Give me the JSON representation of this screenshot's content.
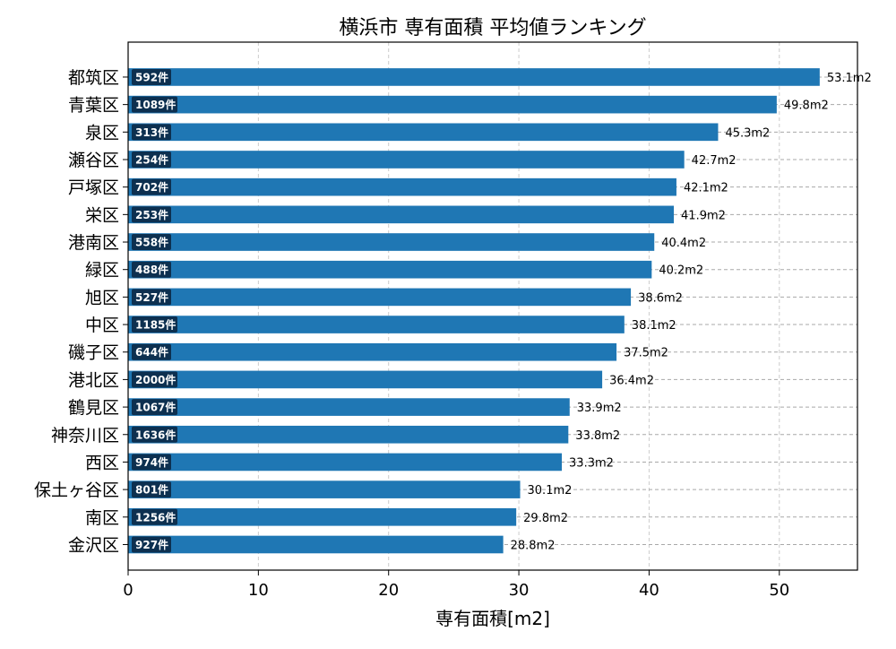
{
  "chart_data": {
    "type": "bar",
    "orientation": "horizontal",
    "title": "横浜市 専有面積 平均値ランキング",
    "xlabel": "専有面積[m2]",
    "ylabel": "",
    "xlim": [
      0,
      56
    ],
    "xticks": [
      0,
      10,
      20,
      30,
      40,
      50
    ],
    "grid": true,
    "bar_color": "#1f77b4",
    "count_badge_color": "#0d3050",
    "categories": [
      "都筑区",
      "青葉区",
      "泉区",
      "瀬谷区",
      "戸塚区",
      "栄区",
      "港南区",
      "緑区",
      "旭区",
      "中区",
      "磯子区",
      "港北区",
      "鶴見区",
      "神奈川区",
      "西区",
      "保土ヶ谷区",
      "南区",
      "金沢区"
    ],
    "values": [
      53.1,
      49.8,
      45.3,
      42.7,
      42.1,
      41.9,
      40.4,
      40.2,
      38.6,
      38.1,
      37.5,
      36.4,
      33.9,
      33.8,
      33.3,
      30.1,
      29.8,
      28.8
    ],
    "value_labels": [
      "53.1m2",
      "49.8m2",
      "45.3m2",
      "42.7m2",
      "42.1m2",
      "41.9m2",
      "40.4m2",
      "40.2m2",
      "38.6m2",
      "38.1m2",
      "37.5m2",
      "36.4m2",
      "33.9m2",
      "33.8m2",
      "33.3m2",
      "30.1m2",
      "29.8m2",
      "28.8m2"
    ],
    "counts": [
      "592件",
      "1089件",
      "313件",
      "254件",
      "702件",
      "253件",
      "558件",
      "488件",
      "527件",
      "1185件",
      "644件",
      "2000件",
      "1067件",
      "1636件",
      "974件",
      "801件",
      "1256件",
      "927件"
    ]
  }
}
